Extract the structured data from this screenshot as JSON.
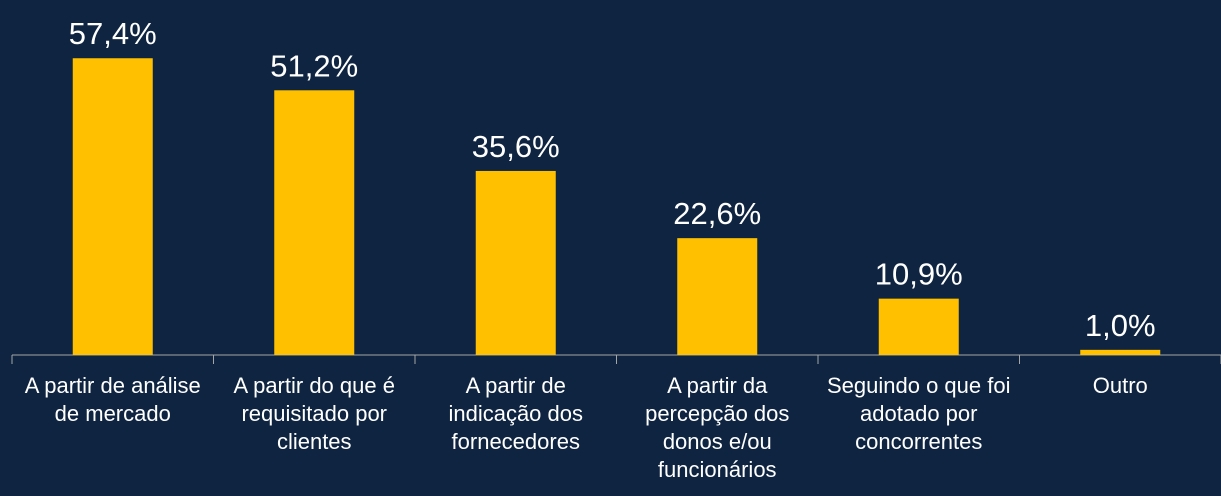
{
  "chart_data": {
    "type": "bar",
    "categories": [
      "A partir de análise de mercado",
      "A partir do que é requisitado por clientes",
      "A partir de indicação dos fornecedores",
      "A partir da percepção dos donos e/ou funcionários",
      "Seguindo o que foi adotado por concorrentes",
      "Outro"
    ],
    "values": [
      57.4,
      51.2,
      35.6,
      22.6,
      10.9,
      1.0
    ],
    "value_labels": [
      "57,4%",
      "51,2%",
      "35,6%",
      "22,6%",
      "10,9%",
      "1,0%"
    ],
    "color": "#ffc000"
  }
}
